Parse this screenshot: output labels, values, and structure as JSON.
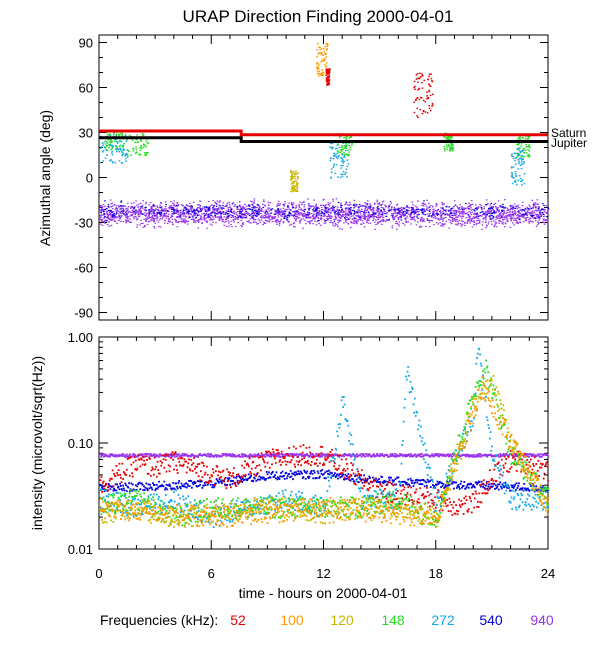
{
  "title": "URAP Direction Finding  2000-04-01",
  "colors": {
    "f52": "#e60000",
    "f100": "#ff9900",
    "f120": "#c8b400",
    "f148": "#22dd22",
    "f272": "#11a8e8",
    "f540": "#0000dd",
    "f940": "#9933ee",
    "saturn": "#e60000",
    "jupiter": "#000000"
  },
  "legend": {
    "label": "Frequencies (kHz):",
    "items": [
      {
        "value": "52",
        "color": "#e60000"
      },
      {
        "value": "100",
        "color": "#ff9900"
      },
      {
        "value": "120",
        "color": "#c8b400"
      },
      {
        "value": "148",
        "color": "#22dd22"
      },
      {
        "value": "272",
        "color": "#11a8e8"
      },
      {
        "value": "540",
        "color": "#0000dd"
      },
      {
        "value": "940",
        "color": "#9933ee"
      }
    ]
  },
  "chart_data": [
    {
      "type": "scatter",
      "title": "URAP Direction Finding  2000-04-01",
      "xlabel": "",
      "ylabel": "Azimuthal angle (deg)",
      "xlim": [
        0,
        24
      ],
      "ylim": [
        -95,
        95
      ],
      "yticks": [
        90,
        60,
        30,
        0,
        -30,
        -60,
        -90
      ],
      "reference_lines": [
        {
          "name": "Saturn",
          "color": "#e60000",
          "steps": [
            [
              0,
              31
            ],
            [
              7.6,
              31
            ],
            [
              7.6,
              28.5
            ],
            [
              24,
              28.5
            ]
          ]
        },
        {
          "name": "Jupiter",
          "color": "#000000",
          "steps": [
            [
              0,
              26.5
            ],
            [
              7.6,
              26.5
            ],
            [
              7.6,
              24
            ],
            [
              24,
              24
            ]
          ]
        }
      ],
      "series": [
        {
          "name": "940",
          "color": "#9933ee",
          "band": {
            "x": [
              0,
              24
            ],
            "center": -24,
            "spread": 6
          }
        },
        {
          "name": "540",
          "color": "#0000dd",
          "band": {
            "x": [
              0,
              24
            ],
            "center": -22,
            "spread": 4
          }
        },
        {
          "name": "148",
          "color": "#22dd22",
          "clusters": [
            [
              0.2,
              1.2,
              18,
              32
            ],
            [
              1.2,
              2.6,
              15,
              30
            ],
            [
              12.7,
              13.5,
              15,
              30
            ],
            [
              18.4,
              18.9,
              18,
              30
            ],
            [
              22.3,
              23,
              14,
              28
            ]
          ]
        },
        {
          "name": "272",
          "color": "#11a8e8",
          "clusters": [
            [
              0,
              1.5,
              10,
              30
            ],
            [
              12.3,
              13.3,
              0,
              25
            ],
            [
              22,
              22.7,
              -5,
              20
            ]
          ]
        },
        {
          "name": "120",
          "color": "#c8b400",
          "clusters": [
            [
              10.2,
              10.6,
              -10,
              5
            ]
          ]
        },
        {
          "name": "100",
          "color": "#ff9900",
          "clusters": [
            [
              11.6,
              12.2,
              68,
              90
            ]
          ]
        },
        {
          "name": "52",
          "color": "#e60000",
          "clusters": [
            [
              12.1,
              12.3,
              62,
              73
            ],
            [
              16.8,
              17.8,
              40,
              70
            ]
          ]
        }
      ]
    },
    {
      "type": "scatter",
      "xlabel": "time - hours on 2000-04-01",
      "ylabel": "intensity (microvolt/sqrt(Hz))",
      "xlim": [
        0,
        24
      ],
      "ylim": [
        0.01,
        1.0
      ],
      "yscale": "log",
      "xticks": [
        0,
        6,
        12,
        18,
        24
      ],
      "yticks": [
        "1.00",
        "0.10",
        "0.01"
      ],
      "series": [
        {
          "name": "940",
          "color": "#9933ee",
          "x": [
            0,
            6,
            12,
            18,
            24
          ],
          "y": [
            0.078,
            0.078,
            0.078,
            0.078,
            0.078
          ]
        },
        {
          "name": "540",
          "color": "#0000dd",
          "x": [
            0,
            3,
            6,
            9,
            12,
            15,
            18,
            21,
            24
          ],
          "y": [
            0.038,
            0.04,
            0.042,
            0.05,
            0.052,
            0.045,
            0.042,
            0.04,
            0.038
          ]
        },
        {
          "name": "52",
          "color": "#e60000",
          "x": [
            0,
            1,
            2,
            3,
            4,
            5,
            6,
            7,
            8,
            9,
            10,
            11,
            12,
            13,
            14,
            15,
            16,
            17,
            18,
            19,
            20,
            21,
            22,
            23,
            24
          ],
          "y": [
            0.04,
            0.052,
            0.065,
            0.06,
            0.068,
            0.06,
            0.052,
            0.046,
            0.058,
            0.07,
            0.075,
            0.078,
            0.078,
            0.06,
            0.045,
            0.036,
            0.033,
            0.032,
            0.03,
            0.026,
            0.027,
            0.05,
            0.07,
            0.065,
            0.055
          ]
        },
        {
          "name": "272",
          "color": "#11a8e8",
          "x": [
            0,
            2,
            4,
            6,
            8,
            10,
            12,
            13,
            14,
            16,
            16.4,
            18,
            20,
            20.2,
            21,
            22,
            24
          ],
          "y": [
            0.03,
            0.025,
            0.03,
            0.02,
            0.025,
            0.03,
            0.025,
            0.25,
            0.03,
            0.03,
            0.5,
            0.025,
            0.2,
            0.8,
            0.08,
            0.03,
            0.03
          ]
        },
        {
          "name": "148",
          "color": "#22dd22",
          "x": [
            0,
            2,
            4,
            6,
            8,
            10,
            12,
            14,
            16,
            18,
            20,
            20.6,
            22,
            24
          ],
          "y": [
            0.025,
            0.03,
            0.02,
            0.025,
            0.025,
            0.025,
            0.025,
            0.025,
            0.03,
            0.02,
            0.3,
            0.55,
            0.08,
            0.03
          ]
        },
        {
          "name": "120",
          "color": "#c8b400",
          "x": [
            0,
            2,
            4,
            6,
            8,
            10,
            12,
            14,
            16,
            18,
            20,
            21,
            22,
            24
          ],
          "y": [
            0.022,
            0.025,
            0.02,
            0.022,
            0.025,
            0.025,
            0.022,
            0.025,
            0.025,
            0.02,
            0.25,
            0.4,
            0.1,
            0.025
          ]
        },
        {
          "name": "100",
          "color": "#ff9900",
          "x": [
            0,
            6,
            12,
            18,
            20.5,
            21.5,
            24
          ],
          "y": [
            0.025,
            0.02,
            0.025,
            0.02,
            0.35,
            0.15,
            0.025
          ]
        }
      ]
    }
  ],
  "planets": {
    "saturn": "Saturn",
    "jupiter": "Jupiter"
  }
}
